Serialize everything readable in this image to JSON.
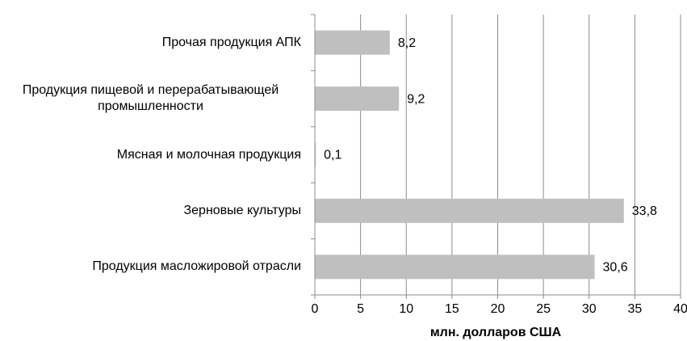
{
  "chart_data": {
    "type": "bar",
    "orientation": "horizontal",
    "categories": [
      "Прочая продукция АПК",
      "Продукция пищевой и перерабатывающей промышленности",
      "Мясная и молочная продукция",
      "Зерновые культуры",
      "Продукция масложировой отрасли"
    ],
    "values": [
      8.2,
      9.2,
      0.1,
      33.8,
      30.6
    ],
    "value_labels": [
      "8,2",
      "9,2",
      "0,1",
      "33,8",
      "30,6"
    ],
    "color": "#bfbfbf",
    "xlim": [
      0,
      40
    ],
    "xticks": [
      0,
      5,
      10,
      15,
      20,
      25,
      30,
      35,
      40
    ],
    "xlabel": "млн. долларов США",
    "grid": true
  }
}
